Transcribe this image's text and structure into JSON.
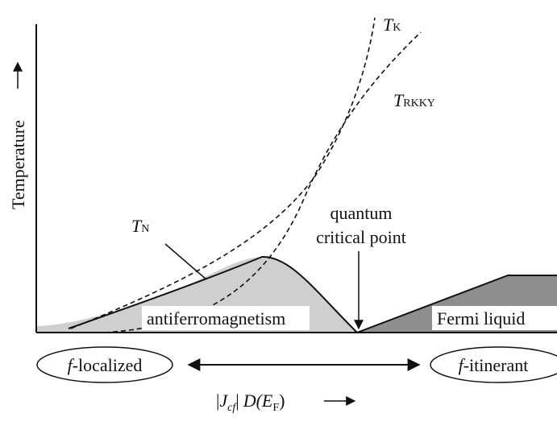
{
  "y_axis": {
    "label": "Temperature"
  },
  "curves": {
    "tk": {
      "main": "T",
      "sub": "K"
    },
    "trkky": {
      "main": "T",
      "sub": "RKKY"
    },
    "tn": {
      "main": "T",
      "sub": "N"
    }
  },
  "qcp": {
    "line1": "quantum",
    "line2": "critical point"
  },
  "regions": {
    "afm": "antiferromagnetism",
    "fermi": "Fermi liquid"
  },
  "ends": {
    "left": {
      "italic": "f",
      "rest": "-localized"
    },
    "right": {
      "italic": "f",
      "rest": "-itinerant"
    }
  },
  "x_axis": {
    "a": "|",
    "b": "J",
    "c": "cf",
    "d": "|",
    "e": "D(",
    "f": "E",
    "g": "F",
    "h": ")"
  }
}
